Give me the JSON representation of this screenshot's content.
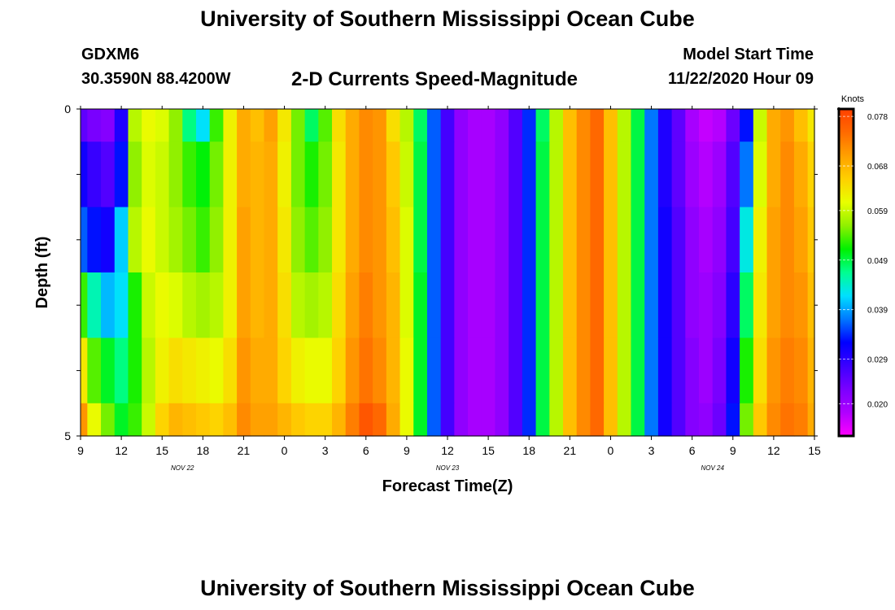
{
  "header": {
    "title": "University of Southern Mississippi Ocean Cube",
    "station": "GDXM6",
    "coordinates": "30.3590N 88.4200W",
    "subtitle": "2-D Currents Speed-Magnitude",
    "model_start_label": "Model Start Time",
    "model_start_value": "11/22/2020 Hour 09"
  },
  "footer": {
    "title": "University of Southern Mississippi Ocean Cube"
  },
  "chart_data": {
    "type": "heatmap",
    "xlabel": "Forecast Time(Z)",
    "ylabel": "Depth (ft)",
    "colorbar_label": "Knots",
    "x_tick_labels": [
      "9",
      "12",
      "15",
      "18",
      "21",
      "0",
      "3",
      "6",
      "9",
      "12",
      "15",
      "18",
      "21",
      "0",
      "3",
      "6",
      "9",
      "12",
      "15"
    ],
    "x_tick_hours": [
      0,
      3,
      6,
      9,
      12,
      15,
      18,
      21,
      24,
      27,
      30,
      33,
      36,
      39,
      42,
      45,
      48,
      51,
      54
    ],
    "x_range_hours": [
      0,
      54
    ],
    "day_labels": [
      {
        "label": "NOV  22",
        "hour": 7.5
      },
      {
        "label": "NOV  23",
        "hour": 27
      },
      {
        "label": "NOV  24",
        "hour": 46.5
      }
    ],
    "y_tick_labels": [
      "0",
      "5"
    ],
    "y_range_ft": [
      0,
      5
    ],
    "colorbar_ticks": [
      0.078,
      0.068,
      0.059,
      0.049,
      0.039,
      0.029,
      0.02
    ],
    "colorbar_range": [
      0.0135,
      0.0795
    ],
    "colormap": [
      "#ff00ff",
      "#b000ff",
      "#7a00ff",
      "#3c00ff",
      "#0000ff",
      "#0078ff",
      "#00e0ff",
      "#00ff90",
      "#00f000",
      "#90f000",
      "#e8ff00",
      "#ffd000",
      "#ffa000",
      "#ff6a00",
      "#ff4000"
    ],
    "depth_layers_ft": [
      0.0,
      0.5,
      1.5,
      2.5,
      3.5,
      4.5
    ],
    "time_columns_hours": [
      0,
      1,
      2,
      3,
      4,
      5,
      6,
      7,
      8,
      9,
      10,
      11,
      12,
      13,
      14,
      15,
      16,
      17,
      18,
      19,
      20,
      21,
      22,
      23,
      24,
      25,
      26,
      27,
      28,
      29,
      30,
      31,
      32,
      33,
      34,
      35,
      36,
      37,
      38,
      39,
      40,
      41,
      42,
      43,
      44,
      45,
      46,
      47,
      48,
      49,
      50,
      51,
      52,
      53,
      54
    ],
    "values_knots": [
      [
        0.025,
        0.023,
        0.022,
        0.03,
        0.058,
        0.061,
        0.06,
        0.056,
        0.047,
        0.042,
        0.053,
        0.062,
        0.069,
        0.067,
        0.07,
        0.063,
        0.055,
        0.048,
        0.054,
        0.064,
        0.069,
        0.072,
        0.071,
        0.064,
        0.058,
        0.048,
        0.036,
        0.027,
        0.021,
        0.019,
        0.019,
        0.021,
        0.026,
        0.034,
        0.048,
        0.058,
        0.067,
        0.072,
        0.075,
        0.067,
        0.058,
        0.049,
        0.037,
        0.03,
        0.025,
        0.019,
        0.017,
        0.018,
        0.024,
        0.033,
        0.059,
        0.069,
        0.071,
        0.067,
        0.063
      ],
      [
        0.031,
        0.028,
        0.026,
        0.033,
        0.056,
        0.06,
        0.059,
        0.056,
        0.053,
        0.051,
        0.055,
        0.062,
        0.069,
        0.068,
        0.069,
        0.062,
        0.055,
        0.052,
        0.055,
        0.063,
        0.069,
        0.072,
        0.071,
        0.066,
        0.059,
        0.049,
        0.036,
        0.027,
        0.021,
        0.019,
        0.019,
        0.021,
        0.026,
        0.034,
        0.049,
        0.058,
        0.067,
        0.072,
        0.075,
        0.067,
        0.058,
        0.049,
        0.037,
        0.03,
        0.025,
        0.02,
        0.018,
        0.02,
        0.026,
        0.037,
        0.06,
        0.069,
        0.072,
        0.069,
        0.065
      ],
      [
        0.036,
        0.033,
        0.031,
        0.041,
        0.058,
        0.061,
        0.059,
        0.057,
        0.055,
        0.053,
        0.056,
        0.062,
        0.07,
        0.068,
        0.069,
        0.063,
        0.056,
        0.054,
        0.056,
        0.063,
        0.069,
        0.072,
        0.071,
        0.067,
        0.06,
        0.049,
        0.036,
        0.027,
        0.021,
        0.019,
        0.019,
        0.021,
        0.026,
        0.034,
        0.049,
        0.058,
        0.067,
        0.072,
        0.075,
        0.067,
        0.058,
        0.049,
        0.037,
        0.031,
        0.026,
        0.021,
        0.019,
        0.021,
        0.027,
        0.043,
        0.062,
        0.07,
        0.072,
        0.07,
        0.066
      ],
      [
        0.053,
        0.045,
        0.04,
        0.042,
        0.052,
        0.059,
        0.061,
        0.06,
        0.058,
        0.057,
        0.058,
        0.062,
        0.07,
        0.068,
        0.069,
        0.064,
        0.058,
        0.057,
        0.058,
        0.064,
        0.07,
        0.073,
        0.071,
        0.068,
        0.06,
        0.05,
        0.036,
        0.027,
        0.021,
        0.019,
        0.019,
        0.021,
        0.026,
        0.034,
        0.049,
        0.058,
        0.067,
        0.072,
        0.075,
        0.067,
        0.058,
        0.049,
        0.037,
        0.031,
        0.026,
        0.021,
        0.02,
        0.022,
        0.029,
        0.048,
        0.063,
        0.07,
        0.072,
        0.071,
        0.067
      ],
      [
        0.063,
        0.054,
        0.05,
        0.047,
        0.052,
        0.058,
        0.062,
        0.064,
        0.063,
        0.062,
        0.061,
        0.064,
        0.071,
        0.069,
        0.069,
        0.065,
        0.062,
        0.061,
        0.061,
        0.065,
        0.071,
        0.074,
        0.072,
        0.068,
        0.061,
        0.05,
        0.036,
        0.027,
        0.021,
        0.019,
        0.019,
        0.021,
        0.026,
        0.034,
        0.049,
        0.058,
        0.067,
        0.072,
        0.075,
        0.067,
        0.058,
        0.049,
        0.037,
        0.031,
        0.026,
        0.022,
        0.02,
        0.023,
        0.031,
        0.052,
        0.064,
        0.071,
        0.073,
        0.072,
        0.068
      ],
      [
        0.071,
        0.061,
        0.055,
        0.05,
        0.053,
        0.059,
        0.065,
        0.068,
        0.067,
        0.066,
        0.065,
        0.067,
        0.072,
        0.07,
        0.07,
        0.068,
        0.066,
        0.065,
        0.065,
        0.068,
        0.073,
        0.077,
        0.075,
        0.069,
        0.061,
        0.05,
        0.036,
        0.027,
        0.021,
        0.019,
        0.019,
        0.021,
        0.026,
        0.034,
        0.049,
        0.058,
        0.067,
        0.072,
        0.075,
        0.067,
        0.058,
        0.049,
        0.037,
        0.031,
        0.026,
        0.022,
        0.021,
        0.024,
        0.033,
        0.055,
        0.066,
        0.072,
        0.074,
        0.073,
        0.069
      ]
    ]
  }
}
